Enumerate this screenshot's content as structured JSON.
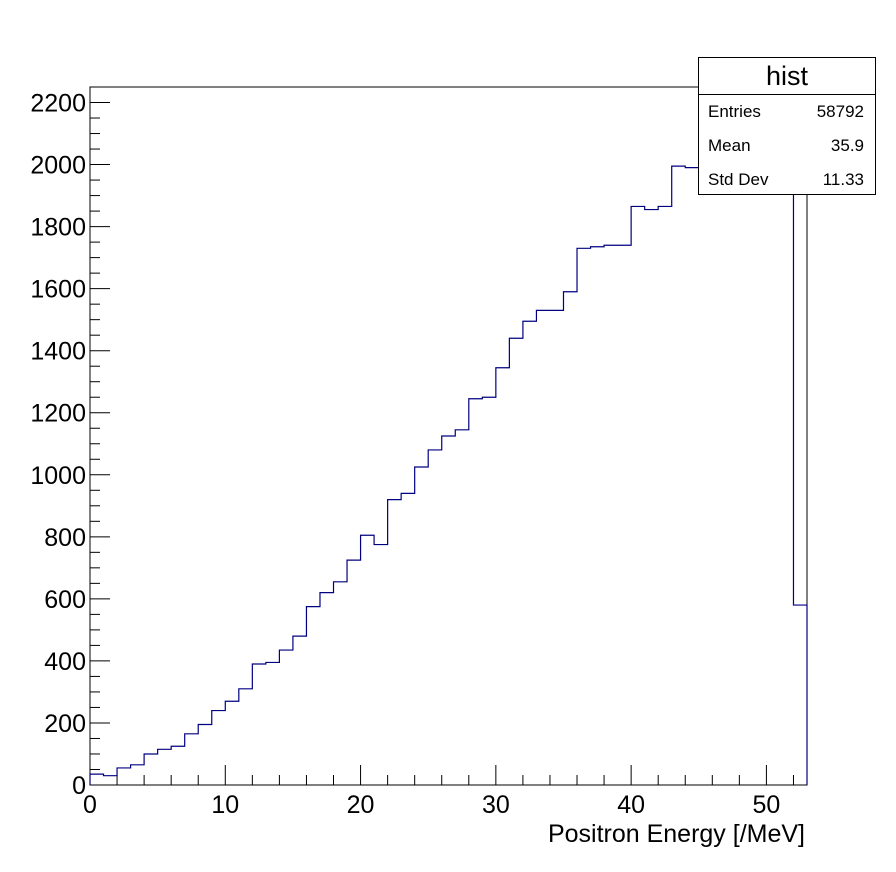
{
  "chart_data": {
    "type": "histogram",
    "title": "",
    "xlabel": "Positron Energy [/MeV]",
    "ylabel": "",
    "xlim": [
      0,
      53
    ],
    "ylim": [
      0,
      2250
    ],
    "bin_width": 1.0,
    "x_ticks": [
      0,
      10,
      20,
      30,
      40,
      50
    ],
    "y_ticks": [
      0,
      200,
      400,
      600,
      800,
      1000,
      1200,
      1400,
      1600,
      1800,
      2000,
      2200
    ],
    "line_color": "#000080",
    "grid": false,
    "bin_edges_start": 0,
    "values": [
      35,
      30,
      55,
      65,
      100,
      115,
      125,
      165,
      195,
      240,
      270,
      310,
      390,
      395,
      435,
      480,
      575,
      620,
      655,
      725,
      805,
      775,
      920,
      940,
      1025,
      1080,
      1125,
      1145,
      1245,
      1250,
      1345,
      1440,
      1495,
      1530,
      1530,
      1590,
      1730,
      1735,
      1740,
      1740,
      1865,
      1855,
      1865,
      1995,
      1990,
      1925,
      1920,
      1950,
      1950,
      1950,
      1950,
      1950,
      580
    ],
    "stats": {
      "name": "hist",
      "entries_label": "Entries",
      "entries": "58792",
      "mean_label": "Mean",
      "mean": "35.9",
      "std_label": "Std Dev",
      "std": "11.33"
    }
  }
}
